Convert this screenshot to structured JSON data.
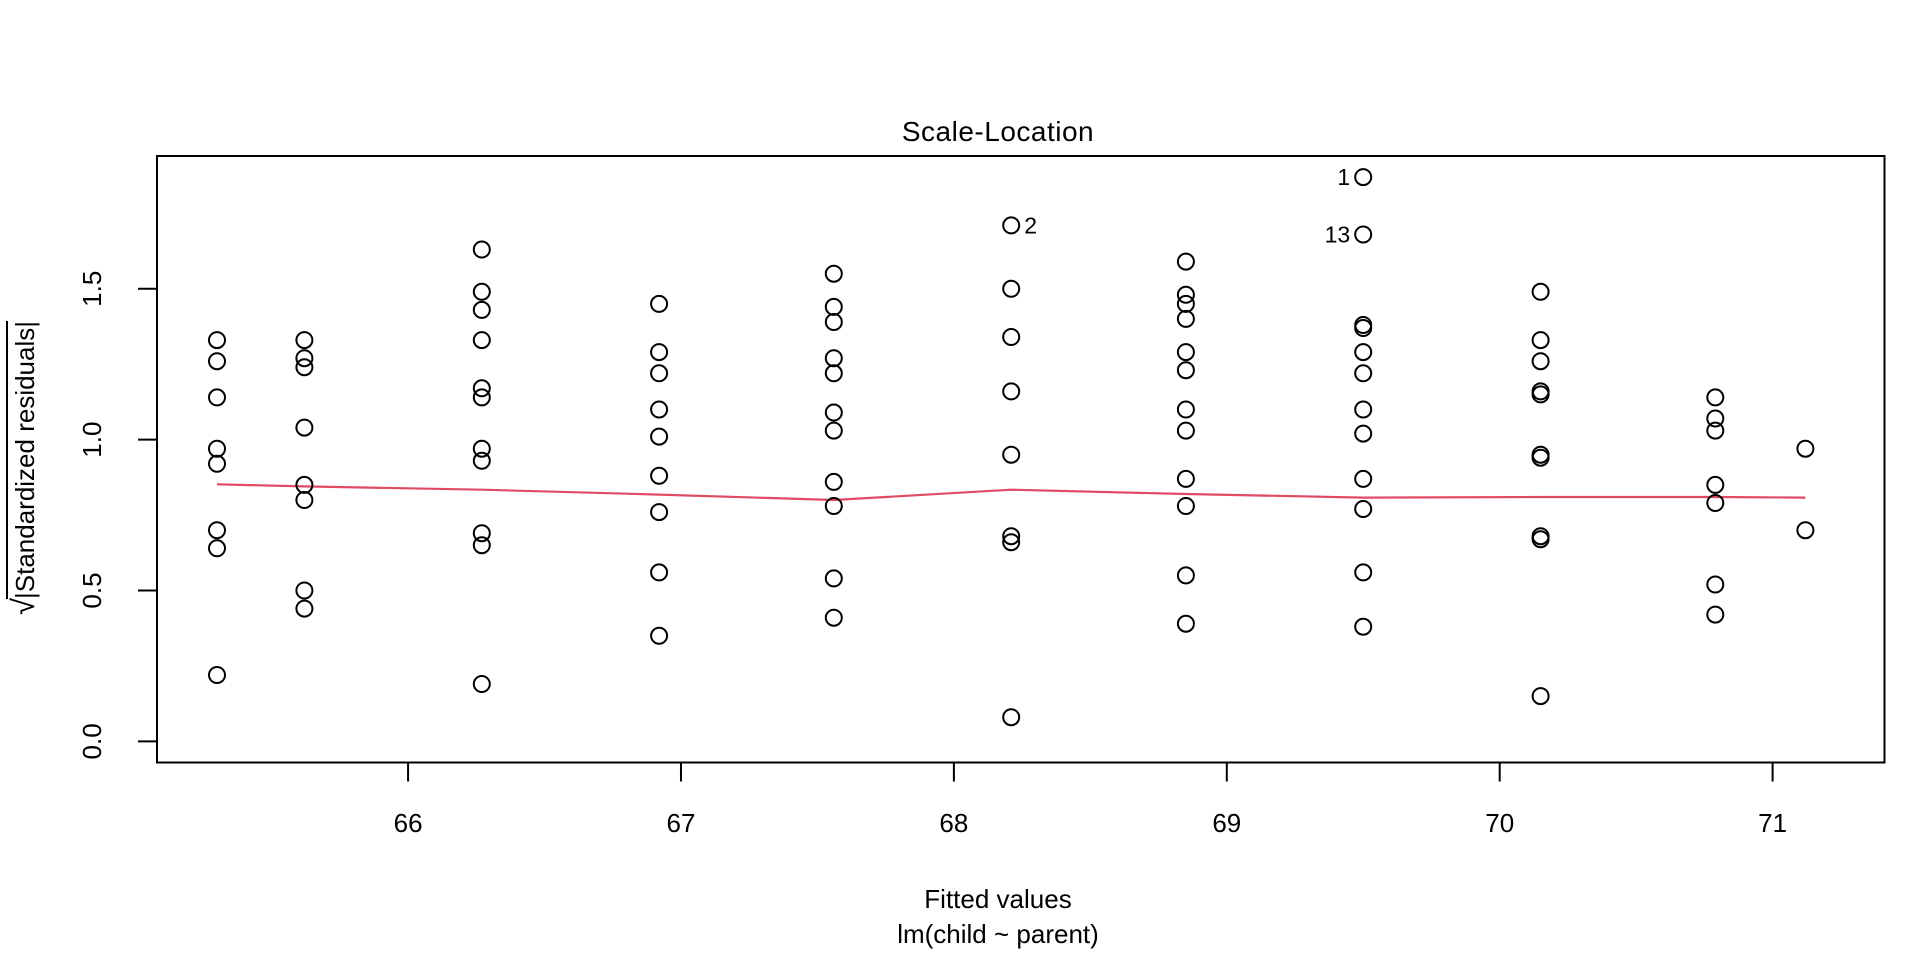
{
  "title": "Scale-Location",
  "x_axis": {
    "label_line1": "Fitted values",
    "label_line2": "lm(child ~ parent)",
    "tick_labels": [
      "66",
      "67",
      "68",
      "69",
      "70",
      "71"
    ]
  },
  "y_axis": {
    "label_sqrt": "√",
    "label_overlined": "|Standardized residuals|",
    "tick_labels": [
      "0.0",
      "0.5",
      "1.0",
      "1.5"
    ]
  },
  "colors": {
    "background": "#ffffff",
    "frame": "#000000",
    "point_stroke": "#000000",
    "smooth_line": "#e04a63",
    "text": "#000000"
  },
  "chart_data": {
    "type": "scatter",
    "title": "Scale-Location",
    "xlabel": "Fitted values",
    "xlabel_sub": "lm(child ~ parent)",
    "ylabel": "sqrt(|Standardized residuals|)",
    "xlim": [
      65.08,
      71.41
    ],
    "ylim": [
      -0.07,
      1.94
    ],
    "x_ticks": [
      66,
      67,
      68,
      69,
      70,
      71
    ],
    "y_ticks": [
      0.0,
      0.5,
      1.0,
      1.5
    ],
    "grid": false,
    "legend": null,
    "point_style": {
      "shape": "open-circle",
      "radius_px": 8,
      "stroke_px": 2
    },
    "columns": [
      {
        "fitted": 65.3,
        "values": [
          1.33,
          1.26,
          1.14,
          0.97,
          0.92,
          0.7,
          0.64,
          0.22
        ]
      },
      {
        "fitted": 65.62,
        "values": [
          1.33,
          1.27,
          1.24,
          1.04,
          0.85,
          0.8,
          0.5,
          0.44
        ]
      },
      {
        "fitted": 66.27,
        "values": [
          1.63,
          1.49,
          1.43,
          1.33,
          1.17,
          1.14,
          0.97,
          0.93,
          0.69,
          0.65,
          0.19
        ]
      },
      {
        "fitted": 66.92,
        "values": [
          1.45,
          1.29,
          1.22,
          1.1,
          1.01,
          0.88,
          0.76,
          0.56,
          0.35
        ]
      },
      {
        "fitted": 67.56,
        "values": [
          1.55,
          1.44,
          1.39,
          1.27,
          1.22,
          1.09,
          1.03,
          0.86,
          0.78,
          0.54,
          0.41
        ]
      },
      {
        "fitted": 68.21,
        "values": [
          1.71,
          1.5,
          1.34,
          1.16,
          0.95,
          0.68,
          0.66,
          0.08
        ]
      },
      {
        "fitted": 68.85,
        "values": [
          1.59,
          1.48,
          1.45,
          1.4,
          1.29,
          1.23,
          1.1,
          1.03,
          0.87,
          0.78,
          0.55,
          0.39
        ]
      },
      {
        "fitted": 69.5,
        "values": [
          1.87,
          1.68,
          1.38,
          1.37,
          1.29,
          1.22,
          1.1,
          1.02,
          0.87,
          0.77,
          0.56,
          0.38
        ]
      },
      {
        "fitted": 70.15,
        "values": [
          1.49,
          1.33,
          1.26,
          1.16,
          1.15,
          0.95,
          0.94,
          0.68,
          0.67,
          0.15
        ]
      },
      {
        "fitted": 70.79,
        "values": [
          1.14,
          1.07,
          1.03,
          0.85,
          0.79,
          0.52,
          0.42
        ]
      },
      {
        "fitted": 71.12,
        "values": [
          0.97,
          0.7
        ]
      }
    ],
    "labeled_points": [
      {
        "label": "1",
        "fitted": 69.5,
        "value": 1.87,
        "side": "left"
      },
      {
        "label": "13",
        "fitted": 69.5,
        "value": 1.68,
        "side": "left"
      },
      {
        "label": "2",
        "fitted": 68.21,
        "value": 1.71,
        "side": "right"
      }
    ],
    "smooth_line": {
      "color": "#e04a63",
      "points": [
        [
          65.3,
          0.852
        ],
        [
          65.62,
          0.845
        ],
        [
          66.27,
          0.834
        ],
        [
          66.92,
          0.818
        ],
        [
          67.56,
          0.8
        ],
        [
          68.21,
          0.834
        ],
        [
          68.85,
          0.82
        ],
        [
          69.5,
          0.808
        ],
        [
          70.15,
          0.81
        ],
        [
          70.79,
          0.81
        ],
        [
          71.12,
          0.808
        ]
      ]
    }
  }
}
